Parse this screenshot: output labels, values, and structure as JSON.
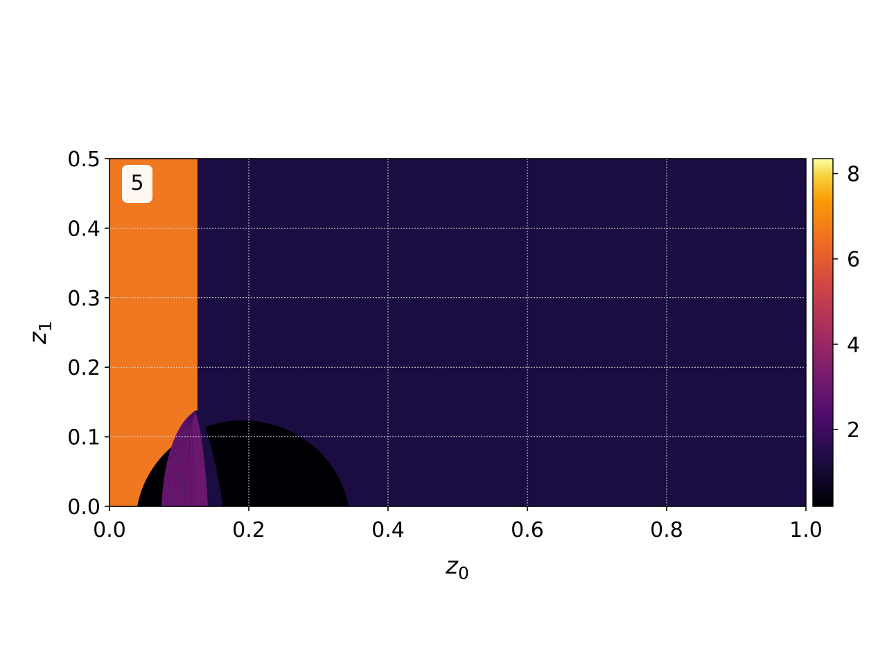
{
  "chart_data": {
    "type": "heatmap",
    "panel_label": "5",
    "xlabel": "z",
    "xlabel_sub": "0",
    "ylabel": "z",
    "ylabel_sub": "1",
    "xlim": [
      0.0,
      1.0
    ],
    "ylim": [
      0.0,
      0.5
    ],
    "xticks": [
      "0.0",
      "0.2",
      "0.4",
      "0.6",
      "0.8",
      "1.0"
    ],
    "yticks": [
      "0.0",
      "0.1",
      "0.2",
      "0.3",
      "0.4",
      "0.5"
    ],
    "grid": true,
    "colormap": "inferno",
    "colorbar": {
      "range": [
        0.2,
        8.35
      ],
      "ticks": [
        "2",
        "4",
        "6",
        "8"
      ]
    },
    "regions": [
      {
        "name": "left-band",
        "z0_range": [
          0.0,
          0.126
        ],
        "z1_range": [
          0.0,
          0.5
        ],
        "value": 5.9,
        "color": "#f07820"
      },
      {
        "name": "background",
        "z0_range": [
          0.126,
          1.0
        ],
        "z1_range": [
          0.0,
          0.5
        ],
        "value": 1.4,
        "color": "#1b0c41"
      },
      {
        "name": "dark-half-disk",
        "center_z0": 0.192,
        "radius_z0": 0.153,
        "radius_z1": 0.15,
        "value": 0.2,
        "color": "#000004"
      },
      {
        "name": "purple-lens",
        "z0_range": [
          0.075,
          0.143
        ],
        "z1_peak": 0.137,
        "value_range": [
          2.0,
          3.0
        ],
        "color": "#6a176e"
      }
    ]
  }
}
